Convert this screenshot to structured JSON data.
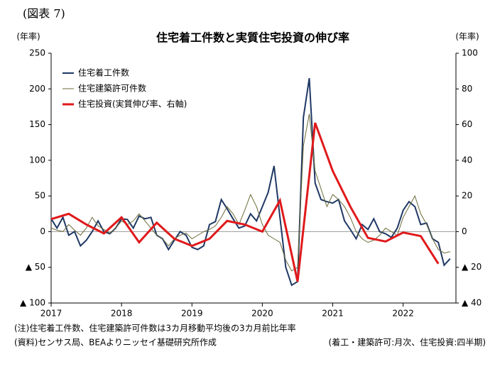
{
  "chart_data": {
    "type": "line",
    "figure_label": "(図表 7)",
    "title": "住宅着工件数と実質住宅投資の伸び率",
    "ylabel": "(年率)",
    "y2label": "(年率)",
    "note": "(注)住宅着工件数、住宅建築許可件数は3カ月移動平均後の3カ月前比年率",
    "source": "(資料)センサス局、BEAよりニッセイ基礎研究所作成",
    "frequency_note": "(着工・建築許可:月次、住宅投資:四半期)",
    "x": [
      2017,
      2017.083,
      2017.167,
      2017.25,
      2017.333,
      2017.417,
      2017.5,
      2017.583,
      2017.667,
      2017.75,
      2017.833,
      2017.917,
      2018,
      2018.083,
      2018.167,
      2018.25,
      2018.333,
      2018.417,
      2018.5,
      2018.583,
      2018.667,
      2018.75,
      2018.833,
      2018.917,
      2019,
      2019.083,
      2019.167,
      2019.25,
      2019.333,
      2019.417,
      2019.5,
      2019.583,
      2019.667,
      2019.75,
      2019.833,
      2019.917,
      2020,
      2020.083,
      2020.167,
      2020.25,
      2020.333,
      2020.417,
      2020.5,
      2020.583,
      2020.667,
      2020.75,
      2020.833,
      2020.917,
      2021,
      2021.083,
      2021.167,
      2021.25,
      2021.333,
      2021.417,
      2021.5,
      2021.583,
      2021.667,
      2021.75,
      2021.833,
      2021.917,
      2022,
      2022.083,
      2022.167,
      2022.25,
      2022.333,
      2022.417,
      2022.5,
      2022.583,
      2022.667
    ],
    "xlim": [
      2017,
      2022.75
    ],
    "xticks": [
      2017,
      2018,
      2019,
      2020,
      2021,
      2022
    ],
    "ylim": [
      -100,
      250
    ],
    "yticks": [
      {
        "value": -100,
        "label": "▲ 100"
      },
      {
        "value": -50,
        "label": "▲ 50"
      },
      0,
      50,
      100,
      150,
      200,
      250
    ],
    "y2lim": [
      -40,
      100
    ],
    "y2ticks": [
      {
        "value": -40,
        "label": "▲ 40"
      },
      {
        "value": -20,
        "label": "▲ 20"
      },
      0,
      20,
      40,
      60,
      80,
      100
    ],
    "legend": "upper left",
    "series": [
      {
        "name": "住宅着工件数",
        "color": "#1f3864",
        "values": [
          18,
          5,
          20,
          -5,
          0,
          -20,
          -12,
          0,
          15,
          0,
          -3,
          5,
          18,
          17,
          5,
          22,
          18,
          20,
          -5,
          -10,
          -25,
          -12,
          0,
          -5,
          -22,
          -25,
          -20,
          10,
          14,
          45,
          32,
          18,
          5,
          8,
          25,
          15,
          35,
          55,
          92,
          20,
          -50,
          -75,
          -70,
          160,
          215,
          68,
          45,
          42,
          40,
          45,
          15,
          3,
          -10,
          10,
          3,
          18,
          0,
          -3,
          -8,
          5,
          30,
          42,
          35,
          10,
          12,
          -10,
          -15,
          -47,
          -38
        ]
      },
      {
        "name": "住宅建築許可件数",
        "color": "#6b6b3a",
        "values": [
          5,
          2,
          0,
          10,
          2,
          -5,
          5,
          20,
          8,
          3,
          -2,
          5,
          15,
          10,
          15,
          25,
          15,
          5,
          -5,
          -10,
          -20,
          -10,
          -5,
          -2,
          -10,
          -5,
          0,
          3,
          8,
          20,
          35,
          25,
          10,
          30,
          52,
          35,
          10,
          -5,
          -10,
          -15,
          -40,
          -55,
          -50,
          120,
          165,
          85,
          60,
          35,
          52,
          45,
          35,
          20,
          0,
          -10,
          -15,
          -12,
          -5,
          5,
          0,
          -5,
          20,
          35,
          50,
          25,
          10,
          -10,
          -25,
          -30,
          -28
        ]
      },
      {
        "name": "住宅投資(実質伸び率、右軸)",
        "color": "#e0191b",
        "axis": "y2",
        "x": [
          2017,
          2017.25,
          2017.5,
          2017.75,
          2018,
          2018.25,
          2018.5,
          2018.75,
          2019,
          2019.25,
          2019.5,
          2019.75,
          2020,
          2020.25,
          2020.5,
          2020.75,
          2021,
          2021.25,
          2021.5,
          2021.75,
          2022,
          2022.25,
          2022.5
        ],
        "values": [
          7,
          10,
          4,
          -1,
          8,
          -6,
          5,
          -4,
          -8,
          -4,
          6,
          4,
          0,
          17.5,
          -28,
          61,
          34,
          14,
          -3.5,
          -5.5,
          -0.5,
          -2.5,
          -18
        ]
      }
    ]
  }
}
